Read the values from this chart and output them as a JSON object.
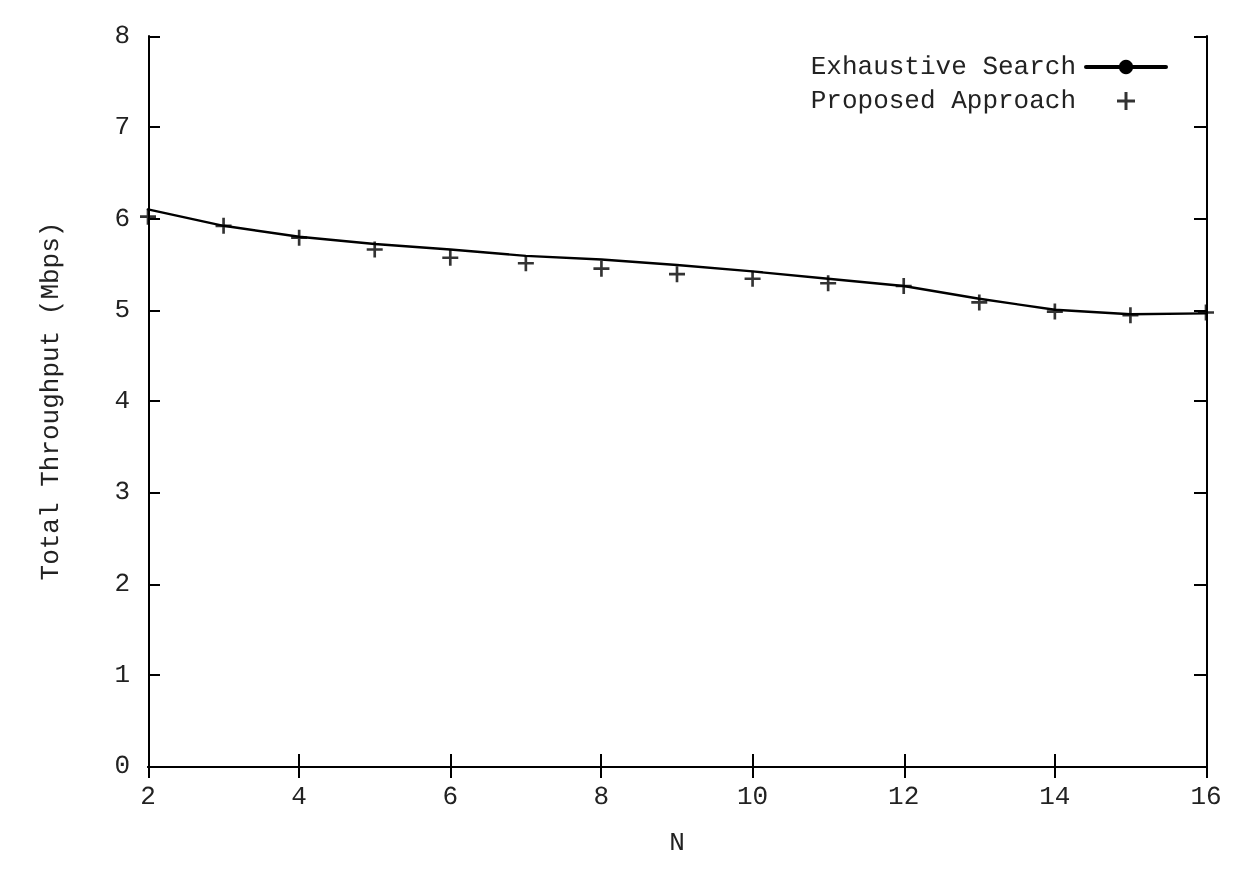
{
  "chart_data": {
    "type": "line",
    "xlabel": "N",
    "ylabel": "Total Throughput (Mbps)",
    "x": [
      2,
      3,
      4,
      5,
      6,
      7,
      8,
      9,
      10,
      11,
      12,
      13,
      14,
      15,
      16
    ],
    "series": [
      {
        "name": "Exhaustive Search",
        "color": "#000000",
        "marker": "none",
        "line_style": "solid",
        "values": [
          6.1,
          5.92,
          5.8,
          5.72,
          5.66,
          5.59,
          5.55,
          5.49,
          5.42,
          5.34,
          5.26,
          5.12,
          5.0,
          4.95,
          4.96
        ]
      },
      {
        "name": "Proposed Approach",
        "type": "scatter",
        "color": "#000000",
        "marker": "cross",
        "values": [
          6.02,
          5.92,
          5.79,
          5.66,
          5.57,
          5.51,
          5.45,
          5.39,
          5.34,
          5.29,
          5.26,
          5.08,
          4.98,
          4.94,
          4.97
        ]
      }
    ],
    "xlim": [
      2,
      16
    ],
    "xticks": [
      2,
      4,
      6,
      8,
      10,
      12,
      14,
      16
    ],
    "ylim": [
      0,
      8
    ],
    "yticks": [
      0,
      1,
      2,
      3,
      4,
      5,
      6,
      7,
      8
    ],
    "grid": false,
    "legend": "top right"
  }
}
